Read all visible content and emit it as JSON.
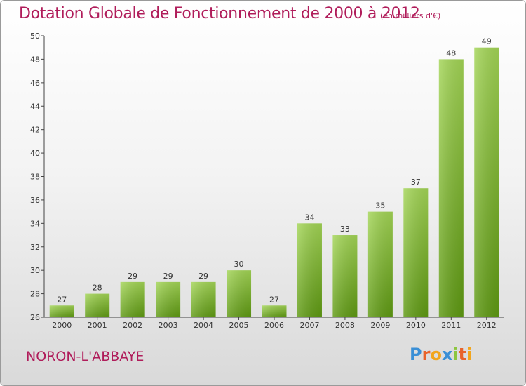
{
  "header": {
    "title": "Dotation Globale de Fonctionnement de 2000 à 2012",
    "subtitle": "(en milliers d'€)"
  },
  "footer": {
    "commune": "NORON-L'ABBAYE",
    "logo_text": "Proxiti",
    "logo_colors": [
      "#3a8fd6",
      "#e8632b",
      "#f2a51c",
      "#3a8fd6",
      "#8cc63f",
      "#e8632b",
      "#f2a51c"
    ]
  },
  "colors": {
    "title": "#b01c5a",
    "bar_light": "#9fd24e",
    "bar_dark": "#5f9a12",
    "axis": "#333333"
  },
  "chart_data": {
    "type": "bar",
    "title": "Dotation Globale de Fonctionnement de 2000 à 2012",
    "subtitle": "(en milliers d'€)",
    "xlabel": "",
    "ylabel": "",
    "categories": [
      "2000",
      "2001",
      "2002",
      "2003",
      "2004",
      "2005",
      "2006",
      "2007",
      "2008",
      "2009",
      "2010",
      "2011",
      "2012"
    ],
    "values": [
      27,
      28,
      29,
      29,
      29,
      30,
      27,
      34,
      33,
      35,
      37,
      48,
      49
    ],
    "ylim": [
      26,
      50
    ],
    "yticks": [
      26,
      28,
      30,
      32,
      34,
      36,
      38,
      40,
      42,
      44,
      46,
      48,
      50
    ],
    "grid": false,
    "legend": "none"
  }
}
